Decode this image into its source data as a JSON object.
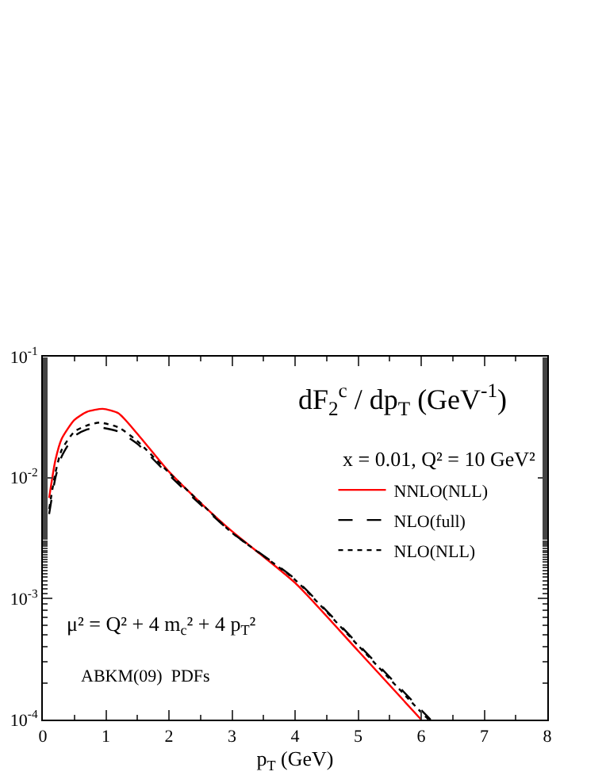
{
  "chart_data": {
    "type": "line",
    "title": "dF$_{2}$$^{c}$ / dp$_{T}$ (GeV$^{-1}$)",
    "xlabel": "p$_{T}$ (GeV)",
    "annotations": [
      "x = 0.01, Q² = 10 GeV²",
      "μ² = Q² + 4 m$_{c}$² + 4 p$_{T}$²",
      "ABKM(09)  PDFs"
    ],
    "log": "y",
    "grid": false,
    "legend": "right",
    "marker": "none",
    "xlim": [
      0,
      8
    ],
    "xticks": [
      0,
      1,
      2,
      3,
      4,
      5,
      6,
      7,
      8
    ],
    "ylim": [
      0.0001,
      0.1
    ],
    "yticks": [
      {
        "value": 0.1,
        "label": "10$^{-1}$"
      },
      {
        "value": 0.01,
        "label": "10$^{-2}$"
      },
      {
        "value": 0.001,
        "label": "10$^{-3}$"
      },
      {
        "value": 0.0001,
        "label": "10$^{-4}$"
      }
    ],
    "series": [
      {
        "name": "NNLO(NLL)",
        "color": "#ff0000",
        "line_style": "solid",
        "x": [
          0.1,
          0.2,
          0.3,
          0.5,
          0.7,
          0.95,
          1.2,
          1.5,
          2,
          2.5,
          3,
          4,
          5,
          6
        ],
        "values": [
          0.0068,
          0.014,
          0.021,
          0.03,
          0.035,
          0.037,
          0.034,
          0.023,
          0.0112,
          0.0062,
          0.0036,
          0.00135,
          0.00037,
          0.0001
        ]
      },
      {
        "name": "NLO(full)",
        "color": "#000000",
        "line_style": "dashed",
        "x": [
          0.1,
          0.2,
          0.3,
          0.5,
          0.7,
          0.9,
          1.2,
          1.5,
          2,
          2.5,
          3,
          4,
          5,
          6,
          6.15
        ],
        "values": [
          0.005,
          0.01,
          0.015,
          0.022,
          0.025,
          0.026,
          0.024,
          0.019,
          0.0105,
          0.006,
          0.0035,
          0.00145,
          0.00042,
          0.00012,
          0.0001
        ]
      },
      {
        "name": "NLO(NLL)",
        "color": "#000000",
        "line_style": "dotted",
        "x": [
          0.1,
          0.2,
          0.3,
          0.5,
          0.7,
          0.9,
          1.2,
          1.5,
          2,
          2.5,
          3,
          4,
          5,
          6,
          6.12
        ],
        "values": [
          0.0055,
          0.011,
          0.017,
          0.024,
          0.027,
          0.0285,
          0.026,
          0.02,
          0.011,
          0.0062,
          0.0035,
          0.00143,
          0.00041,
          0.000115,
          0.0001
        ]
      }
    ]
  }
}
